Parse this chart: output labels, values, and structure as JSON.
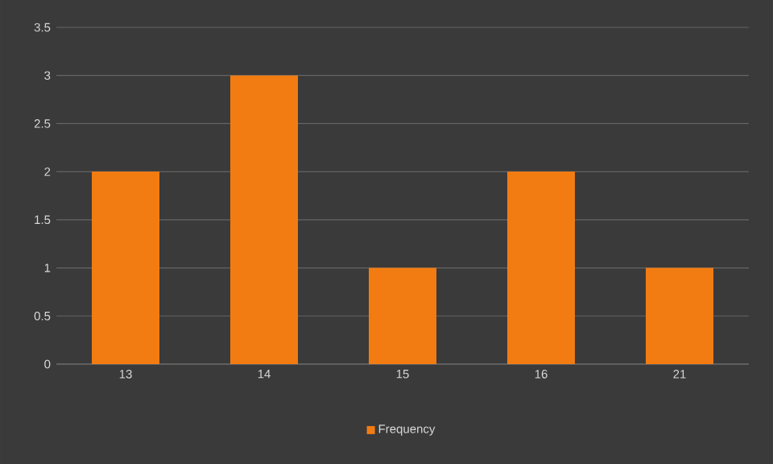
{
  "chart_data": {
    "type": "bar",
    "categories": [
      "13",
      "14",
      "15",
      "16",
      "21"
    ],
    "series": [
      {
        "name": "Frequency",
        "color": "#f27c12",
        "values": [
          2,
          3,
          1,
          2,
          1
        ]
      }
    ],
    "ylim": [
      0,
      3.5
    ],
    "yticks": [
      0,
      0.5,
      1,
      1.5,
      2,
      2.5,
      3,
      3.5
    ],
    "grid": "y",
    "legend": "bottom"
  }
}
